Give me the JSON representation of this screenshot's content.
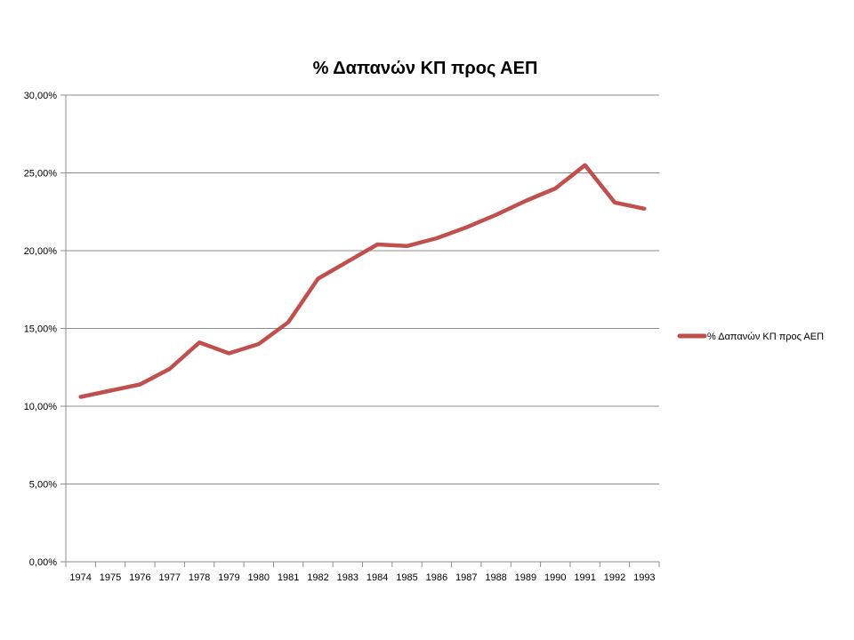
{
  "chart_data": {
    "type": "line",
    "title": "% Δαπανών ΚΠ προς ΑΕΠ",
    "xlabel": "",
    "ylabel": "",
    "categories": [
      "1974",
      "1975",
      "1976",
      "1977",
      "1978",
      "1979",
      "1980",
      "1981",
      "1982",
      "1983",
      "1984",
      "1985",
      "1986",
      "1987",
      "1988",
      "1989",
      "1990",
      "1991",
      "1992",
      "1993"
    ],
    "series": [
      {
        "name": "% Δαπανών ΚΠ προς ΑΕΠ",
        "color": "#c0504d",
        "values": [
          10.6,
          11.0,
          11.4,
          12.4,
          14.1,
          13.4,
          14.0,
          15.4,
          18.2,
          19.3,
          20.4,
          20.3,
          20.8,
          21.5,
          22.3,
          23.2,
          24.0,
          25.5,
          23.1,
          22.7
        ]
      }
    ],
    "ylim": [
      0,
      30
    ],
    "yticks": [
      "0,00%",
      "5,00%",
      "10,00%",
      "15,00%",
      "20,00%",
      "25,00%",
      "30,00%"
    ],
    "grid": true,
    "legend_position": "right"
  }
}
